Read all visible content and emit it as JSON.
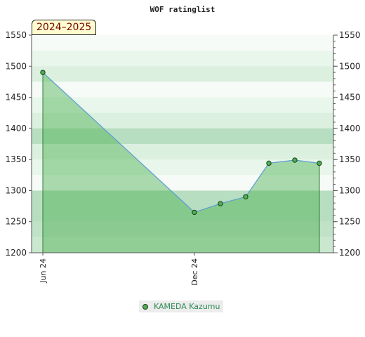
{
  "chart_data": {
    "type": "area",
    "title": "WOF ratinglist",
    "season_label": "2024–2025",
    "ylim": [
      1200,
      1550
    ],
    "y_ticks": [
      1200,
      1250,
      1300,
      1350,
      1400,
      1450,
      1500,
      1550
    ],
    "x_ticks": [
      "Jun 24",
      "Dec 24"
    ],
    "x": [
      "Jun 24",
      "Dec 24",
      "Jan 25",
      "Feb 25",
      "Mar 25",
      "Apr 25",
      "May 25"
    ],
    "series": [
      {
        "name": "KAMEDA Kazumu",
        "values": [
          1490,
          1265,
          1279,
          1290,
          1344,
          1349,
          1344
        ]
      }
    ],
    "legend_position": "bottom-center",
    "grid": true,
    "colors": {
      "line": "#5b9bd5",
      "fill": "#4caf50",
      "marker": "#4caf50",
      "legend_text": "#2e8b57",
      "season_text": "#7a0000"
    }
  }
}
